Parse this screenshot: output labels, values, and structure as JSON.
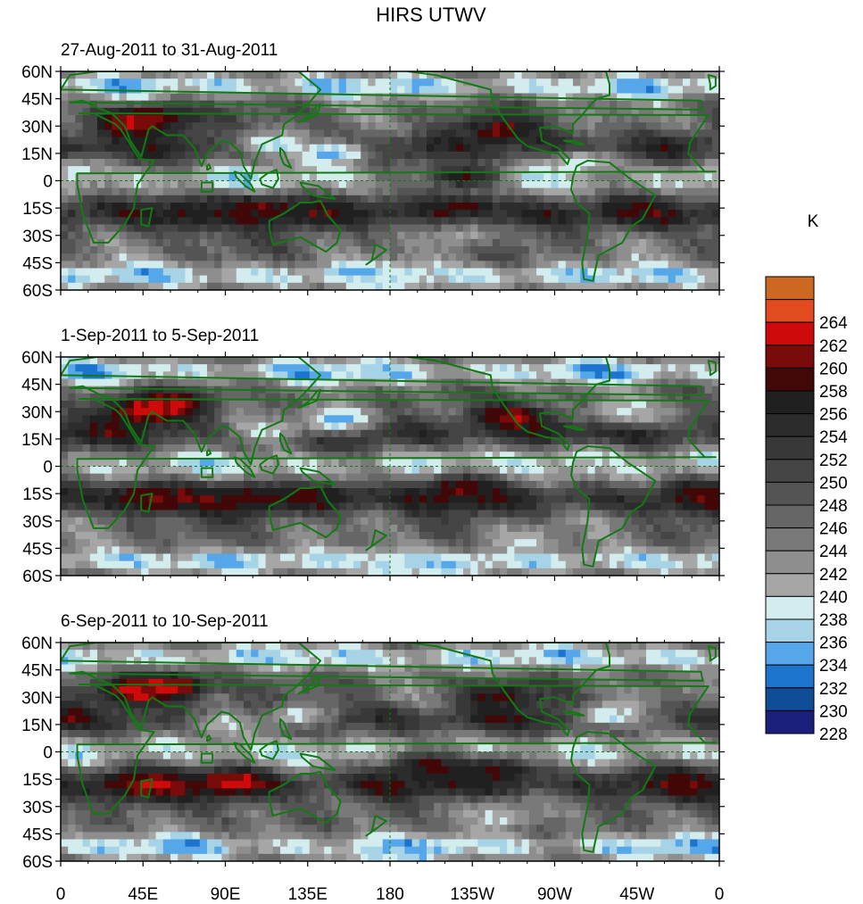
{
  "title": "HIRS UTWV",
  "chart_data": {
    "type": "heatmap",
    "title": "HIRS UTWV",
    "panels": [
      {
        "subtitle": "27-Aug-2011 to 31-Aug-2011"
      },
      {
        "subtitle": "1-Sep-2011 to 5-Sep-2011"
      },
      {
        "subtitle": "6-Sep-2011 to 10-Sep-2011"
      }
    ],
    "x_ticks": [
      "0",
      "45E",
      "90E",
      "135E",
      "180",
      "135W",
      "90W",
      "45W",
      "0"
    ],
    "y_ticks": [
      "60N",
      "45N",
      "30N",
      "15N",
      "0",
      "15S",
      "30S",
      "45S",
      "60S"
    ],
    "xlim": [
      0,
      360
    ],
    "ylim": [
      -60,
      60
    ],
    "colorbar": {
      "unit": "K",
      "levels": [
        228,
        230,
        232,
        234,
        236,
        238,
        240,
        242,
        244,
        246,
        248,
        250,
        252,
        254,
        256,
        258,
        260,
        262,
        264
      ],
      "colors": [
        "#1b1f7c",
        "#0f4e96",
        "#1c74cc",
        "#56a6ea",
        "#a7d3e7",
        "#d3edee",
        "#a6a6a6",
        "#8e8e8e",
        "#797979",
        "#666666",
        "#545454",
        "#454545",
        "#383838",
        "#2c2c2c",
        "#202020",
        "#420707",
        "#790b0b",
        "#cf0a0a",
        "#e24a20",
        "#cc6822"
      ]
    },
    "coastline_color": "#137a13",
    "features": [
      [
        {
          "lon": 40,
          "lat": 32,
          "v": 261
        },
        {
          "lon": 55,
          "lat": 33,
          "v": 260
        },
        {
          "lon": 80,
          "lat": 30,
          "v": 250
        },
        {
          "lon": 115,
          "lat": 20,
          "v": 234
        },
        {
          "lon": 150,
          "lat": 15,
          "v": 233
        },
        {
          "lon": 240,
          "lat": 28,
          "v": 258
        },
        {
          "lon": 105,
          "lat": -15,
          "v": 258
        },
        {
          "lon": 140,
          "lat": -17,
          "v": 257
        },
        {
          "lon": 70,
          "lat": -18,
          "v": 256
        },
        {
          "lon": 220,
          "lat": -15,
          "v": 257
        },
        {
          "lon": 220,
          "lat": 2,
          "v": 256
        },
        {
          "lon": 320,
          "lat": -17,
          "v": 257
        },
        {
          "lon": 285,
          "lat": 10,
          "v": 237
        },
        {
          "lon": 220,
          "lat": -30,
          "v": 240
        },
        {
          "lon": 10,
          "lat": 5,
          "v": 238
        },
        {
          "lon": 180,
          "lat": -55,
          "v": 237
        }
      ],
      [
        {
          "lon": 45,
          "lat": 30,
          "v": 261
        },
        {
          "lon": 60,
          "lat": 34,
          "v": 261
        },
        {
          "lon": 110,
          "lat": 20,
          "v": 237
        },
        {
          "lon": 150,
          "lat": 25,
          "v": 233
        },
        {
          "lon": 245,
          "lat": 27,
          "v": 260
        },
        {
          "lon": 100,
          "lat": -18,
          "v": 257
        },
        {
          "lon": 50,
          "lat": -17,
          "v": 259
        },
        {
          "lon": 140,
          "lat": -17,
          "v": 257
        },
        {
          "lon": 220,
          "lat": -12,
          "v": 258
        },
        {
          "lon": 350,
          "lat": -15,
          "v": 257
        },
        {
          "lon": 285,
          "lat": 5,
          "v": 237
        },
        {
          "lon": 310,
          "lat": 30,
          "v": 237
        },
        {
          "lon": 250,
          "lat": -40,
          "v": 238
        },
        {
          "lon": 180,
          "lat": -55,
          "v": 236
        }
      ],
      [
        {
          "lon": 40,
          "lat": 33,
          "v": 261
        },
        {
          "lon": 60,
          "lat": 36,
          "v": 261
        },
        {
          "lon": 90,
          "lat": 15,
          "v": 237
        },
        {
          "lon": 130,
          "lat": 20,
          "v": 237
        },
        {
          "lon": 95,
          "lat": -17,
          "v": 261
        },
        {
          "lon": 45,
          "lat": -18,
          "v": 260
        },
        {
          "lon": 240,
          "lat": 30,
          "v": 257
        },
        {
          "lon": 200,
          "lat": -8,
          "v": 257
        },
        {
          "lon": 240,
          "lat": -10,
          "v": 257
        },
        {
          "lon": 340,
          "lat": -17,
          "v": 257
        },
        {
          "lon": 300,
          "lat": 20,
          "v": 235
        },
        {
          "lon": 240,
          "lat": -35,
          "v": 238
        },
        {
          "lon": 180,
          "lat": -57,
          "v": 235
        }
      ]
    ]
  }
}
